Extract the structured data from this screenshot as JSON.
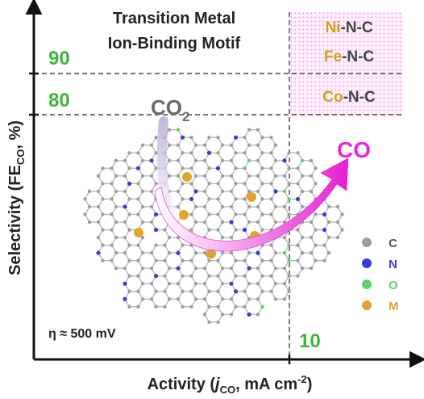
{
  "title": {
    "line1": "Transition Metal",
    "line2": "Ion-Binding Motif"
  },
  "axes": {
    "y_label": {
      "pre": "Selectivity (FE",
      "sub": "CO",
      "post": ", %)"
    },
    "x_label": {
      "pre": "Activity (",
      "j": "j",
      "sub": "CO",
      "post": ", mA cm",
      "sup": "-2",
      "end": ")"
    }
  },
  "thresholds": {
    "selectivity_90": "90",
    "selectivity_80": "80",
    "activity_10": "10"
  },
  "catalysts": [
    {
      "metal": "Ni",
      "rest": "-N-C"
    },
    {
      "metal": "Fe",
      "rest": "-N-C"
    },
    {
      "metal": "Co",
      "rest": "-N-C"
    }
  ],
  "reaction": {
    "reactant": {
      "base": "CO",
      "sub": "2"
    },
    "product": "CO"
  },
  "overpotential": "η ≈ 500 mV",
  "legend": [
    {
      "symbol": "C",
      "color": "#9e9e9e"
    },
    {
      "symbol": "N",
      "color": "#3a3ad6"
    },
    {
      "symbol": "O",
      "color": "#5fd06a"
    },
    {
      "symbol": "M",
      "color": "#e0a52a"
    }
  ],
  "colors": {
    "threshold_green": "#3fb43a",
    "metal_gold": "#d4a017",
    "arrow_magenta": "#e82ad6",
    "highlight_pink": "#f7c9f3"
  }
}
